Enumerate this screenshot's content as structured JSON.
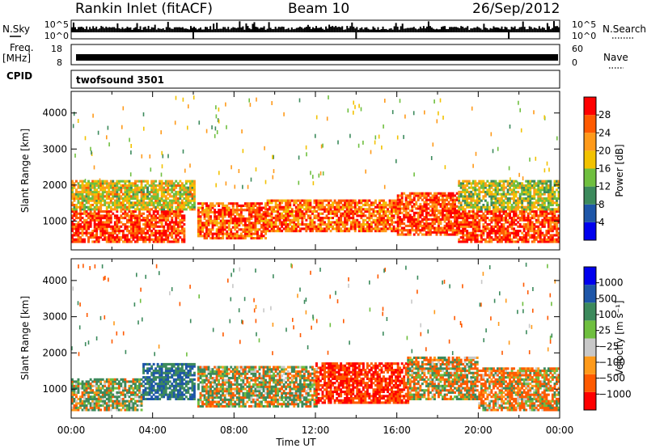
{
  "header": {
    "radar": "Rankin Inlet (fitACF)",
    "beam": "Beam 10",
    "date": "26/Sep/2012"
  },
  "top_panels": {
    "nsky_label": "N.Sky",
    "nsky_ticks": [
      "10^5",
      "10^0"
    ],
    "nsearch_label": "N.Search",
    "nsearch_ticks": [
      "10^5",
      "10^0"
    ],
    "freq_label": "Freq.",
    "freq_unit": "[MHz]",
    "freq_ticks": [
      "18",
      "8"
    ],
    "nave_label": "Nave",
    "nave_ticks": [
      "60",
      "0"
    ],
    "cpid_label": "CPID",
    "cpid_value": "twofsound 3501"
  },
  "colors": {
    "power_scale": [
      "#0000ee",
      "#1e56a8",
      "#3c8a5c",
      "#6fbf3f",
      "#f2c200",
      "#ff9a1a",
      "#ff5a00",
      "#ff0000"
    ],
    "velocity_scale": [
      "#ff0000",
      "#ff5a00",
      "#ff9a1a",
      "#c8c8c8",
      "#6fbf3f",
      "#3c8a5c",
      "#1e56a8",
      "#0000ee"
    ]
  },
  "chart_data": [
    {
      "type": "heatmap",
      "name": "power",
      "ylabel": "Slant Range [km]",
      "xlabel": "",
      "yticks": [
        "1000",
        "2000",
        "3000",
        "4000"
      ],
      "ylim": [
        200,
        4600
      ],
      "xticks": [
        "00:00",
        "04:00",
        "08:00",
        "12:00",
        "16:00",
        "20:00",
        "00:00"
      ],
      "colorbar": {
        "label": "Power [dB]",
        "ticks": [
          "4",
          "8",
          "12",
          "16",
          "20",
          "24",
          "28"
        ]
      },
      "bands": [
        {
          "t0": 0.0,
          "t1": 5.5,
          "r0": 400,
          "r1": 1300,
          "value": 28
        },
        {
          "t0": 0.0,
          "t1": 6.0,
          "r0": 1300,
          "r1": 2100,
          "value": 18
        },
        {
          "t0": 6.2,
          "t1": 9.5,
          "r0": 500,
          "r1": 1500,
          "value": 26
        },
        {
          "t0": 9.5,
          "t1": 16.0,
          "r0": 700,
          "r1": 1600,
          "value": 25
        },
        {
          "t0": 16.0,
          "t1": 19.0,
          "r0": 600,
          "r1": 1800,
          "value": 27
        },
        {
          "t0": 19.0,
          "t1": 24.0,
          "r0": 400,
          "r1": 1300,
          "value": 28
        },
        {
          "t0": 19.0,
          "t1": 24.0,
          "r0": 1300,
          "r1": 2100,
          "value": 16
        }
      ]
    },
    {
      "type": "heatmap",
      "name": "velocity",
      "ylabel": "Slant Range [km]",
      "xlabel": "Time UT",
      "yticks": [
        "1000",
        "2000",
        "3000",
        "4000"
      ],
      "ylim": [
        200,
        4600
      ],
      "xticks": [
        "00:00",
        "04:00",
        "08:00",
        "12:00",
        "16:00",
        "20:00",
        "00:00"
      ],
      "colorbar": {
        "label": "Velocity [m s⁻¹]",
        "ticks": [
          "1000",
          "500",
          "100",
          "25",
          "−25",
          "−100",
          "−500",
          "−1000"
        ]
      },
      "bands": [
        {
          "t0": 0.0,
          "t1": 3.5,
          "r0": 400,
          "r1": 1300,
          "value": 100
        },
        {
          "t0": 3.5,
          "t1": 6.0,
          "r0": 700,
          "r1": 1700,
          "value": 500
        },
        {
          "t0": 6.2,
          "t1": 12.0,
          "r0": 500,
          "r1": 1600,
          "value": 25
        },
        {
          "t0": 12.0,
          "t1": 16.5,
          "r0": 600,
          "r1": 1700,
          "value": -500
        },
        {
          "t0": 16.5,
          "t1": 20.0,
          "r0": 700,
          "r1": 1900,
          "value": -25
        },
        {
          "t0": 20.0,
          "t1": 24.0,
          "r0": 400,
          "r1": 1600,
          "value": -100
        }
      ]
    }
  ]
}
